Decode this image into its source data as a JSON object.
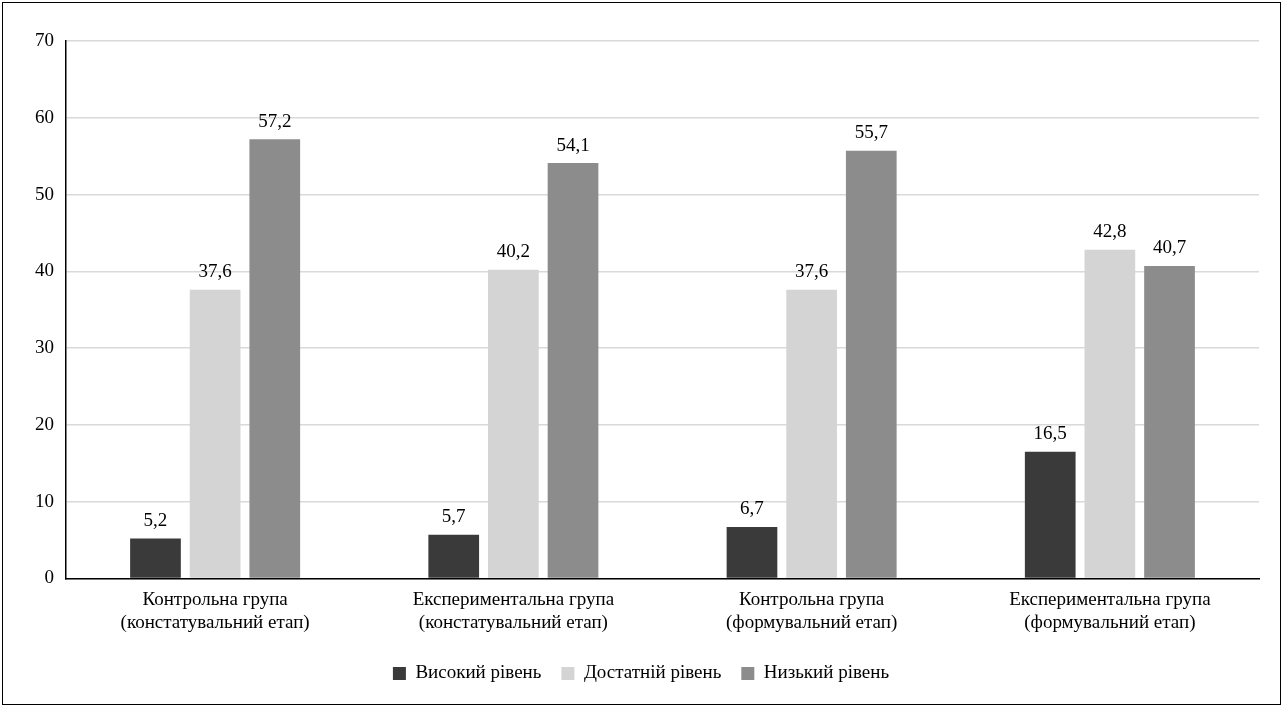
{
  "chart_data": {
    "type": "bar",
    "categories": [
      "Контрольна група\n(констатувальний етап)",
      "Експериментальна група\n(констатувальний етап)",
      "Контрольна група\n(формувальний етап)",
      "Експериментальна група\n(формувальний етап)"
    ],
    "series": [
      {
        "name": "Високий рівень",
        "color": "#3a3a3a",
        "values": [
          5.2,
          5.7,
          6.7,
          16.5
        ],
        "value_labels": [
          "5,2",
          "5,7",
          "6,7",
          "16,5"
        ]
      },
      {
        "name": "Достатній рівень",
        "color": "#d4d4d4",
        "values": [
          37.6,
          40.2,
          37.6,
          42.8
        ],
        "value_labels": [
          "37,6",
          "40,2",
          "37,6",
          "42,8"
        ]
      },
      {
        "name": "Низький рівень",
        "color": "#8c8c8c",
        "values": [
          57.2,
          54.1,
          55.7,
          40.7
        ],
        "value_labels": [
          "57,2",
          "54,1",
          "55,7",
          "40,7"
        ]
      }
    ],
    "ylim": [
      0,
      70
    ],
    "yticks": [
      0,
      10,
      20,
      30,
      40,
      50,
      60,
      70
    ],
    "grid": "y",
    "legend": "bottom"
  }
}
